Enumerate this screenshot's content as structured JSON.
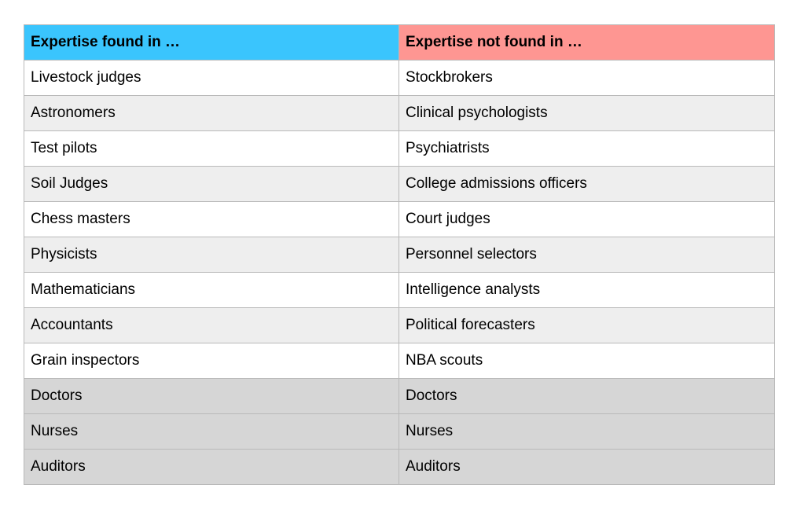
{
  "table": {
    "headers": [
      {
        "label": "Expertise found in …",
        "color": "#3ac5fd"
      },
      {
        "label": "Expertise not found in …",
        "color": "#fe9692"
      }
    ],
    "rows": [
      {
        "found": "Livestock judges",
        "not_found": "Stockbrokers",
        "shade": "white"
      },
      {
        "found": "Astronomers",
        "not_found": "Clinical psychologists",
        "shade": "light"
      },
      {
        "found": "Test pilots",
        "not_found": "Psychiatrists",
        "shade": "white"
      },
      {
        "found": "Soil Judges",
        "not_found": "College admissions officers",
        "shade": "light"
      },
      {
        "found": "Chess masters",
        "not_found": "Court judges",
        "shade": "white"
      },
      {
        "found": "Physicists",
        "not_found": "Personnel selectors",
        "shade": "light"
      },
      {
        "found": "Mathematicians",
        "not_found": "Intelligence analysts",
        "shade": "white"
      },
      {
        "found": "Accountants",
        "not_found": "Political forecasters",
        "shade": "light"
      },
      {
        "found": "Grain inspectors",
        "not_found": "NBA scouts",
        "shade": "white"
      },
      {
        "found": "Doctors",
        "not_found": "Doctors",
        "shade": "dark"
      },
      {
        "found": "Nurses",
        "not_found": "Nurses",
        "shade": "dark"
      },
      {
        "found": "Auditors",
        "not_found": "Auditors",
        "shade": "dark"
      }
    ]
  }
}
